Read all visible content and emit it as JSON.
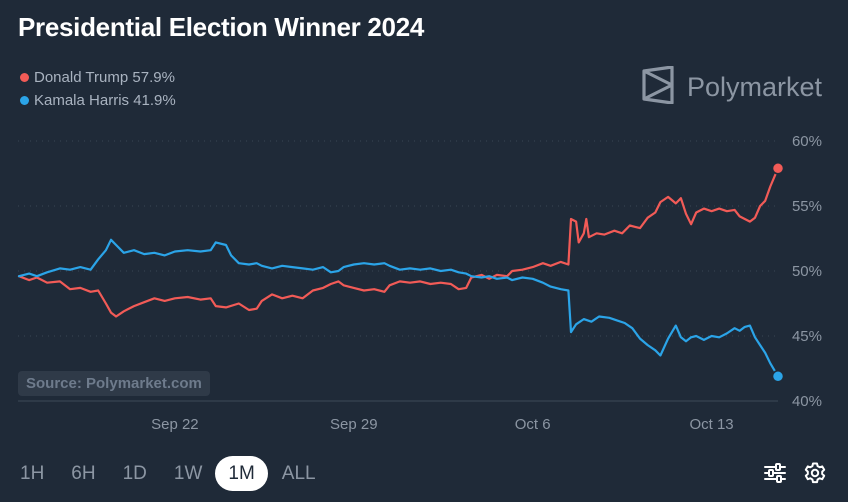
{
  "title": "Presidential Election Winner 2024",
  "brand": {
    "name": "Polymarket",
    "icon": "polymarket-logo-icon"
  },
  "legend": [
    {
      "label": "Donald Trump 57.9%",
      "color": "#f25b57"
    },
    {
      "label": "Kamala Harris 41.9%",
      "color": "#2ba4e8"
    }
  ],
  "source_label": "Source: Polymarket.com",
  "time_ranges": [
    {
      "label": "1H",
      "active": false
    },
    {
      "label": "6H",
      "active": false
    },
    {
      "label": "1D",
      "active": false
    },
    {
      "label": "1W",
      "active": false
    },
    {
      "label": "1M",
      "active": true
    },
    {
      "label": "ALL",
      "active": false
    }
  ],
  "tools": {
    "settings_icon": "sliders-icon",
    "gear_icon": "gear-icon"
  },
  "chart_data": {
    "type": "line",
    "title": "Presidential Election Winner 2024",
    "x_ticks": [
      {
        "day": 22,
        "label": "Sep 22"
      },
      {
        "day": 29,
        "label": "Sep 29"
      },
      {
        "day": 36,
        "label": "Oct 6"
      },
      {
        "day": 43,
        "label": "Oct 13"
      }
    ],
    "y_ticks": [
      {
        "value": 60,
        "label": "60%"
      },
      {
        "value": 55,
        "label": "55%"
      },
      {
        "value": 50,
        "label": "50%"
      },
      {
        "value": 45,
        "label": "45%"
      },
      {
        "value": 40,
        "label": "40%"
      }
    ],
    "xlim": [
      15.9,
      45.6
    ],
    "ylim": [
      40,
      60
    ],
    "grid": true,
    "series": [
      {
        "name": "Donald Trump",
        "color": "#f25b57",
        "end_marker": true,
        "points": [
          [
            15.9,
            49.6
          ],
          [
            16.3,
            49.3
          ],
          [
            16.6,
            49.5
          ],
          [
            17.0,
            49.1
          ],
          [
            17.5,
            49.2
          ],
          [
            17.9,
            48.6
          ],
          [
            18.3,
            48.7
          ],
          [
            18.7,
            48.4
          ],
          [
            19.0,
            48.5
          ],
          [
            19.3,
            47.5
          ],
          [
            19.5,
            46.8
          ],
          [
            19.7,
            46.5
          ],
          [
            20.0,
            46.9
          ],
          [
            20.4,
            47.3
          ],
          [
            20.8,
            47.6
          ],
          [
            21.2,
            47.9
          ],
          [
            21.6,
            47.7
          ],
          [
            22.0,
            47.9
          ],
          [
            22.5,
            48.0
          ],
          [
            23.0,
            47.8
          ],
          [
            23.4,
            47.9
          ],
          [
            23.6,
            47.3
          ],
          [
            24.0,
            47.2
          ],
          [
            24.5,
            47.5
          ],
          [
            24.9,
            47.0
          ],
          [
            25.2,
            47.1
          ],
          [
            25.4,
            47.7
          ],
          [
            25.8,
            48.2
          ],
          [
            26.2,
            47.9
          ],
          [
            26.6,
            48.1
          ],
          [
            27.0,
            47.9
          ],
          [
            27.4,
            48.5
          ],
          [
            27.8,
            48.7
          ],
          [
            28.1,
            49.0
          ],
          [
            28.4,
            49.2
          ],
          [
            28.6,
            48.9
          ],
          [
            29.0,
            48.7
          ],
          [
            29.4,
            48.5
          ],
          [
            29.8,
            48.6
          ],
          [
            30.2,
            48.4
          ],
          [
            30.4,
            48.9
          ],
          [
            30.8,
            49.2
          ],
          [
            31.2,
            49.1
          ],
          [
            31.6,
            49.2
          ],
          [
            32.0,
            49.0
          ],
          [
            32.4,
            49.1
          ],
          [
            32.8,
            49.0
          ],
          [
            33.1,
            48.6
          ],
          [
            33.4,
            48.7
          ],
          [
            33.6,
            49.5
          ],
          [
            34.0,
            49.7
          ],
          [
            34.3,
            49.4
          ],
          [
            34.6,
            49.7
          ],
          [
            35.0,
            49.6
          ],
          [
            35.2,
            50.0
          ],
          [
            35.6,
            50.1
          ],
          [
            36.0,
            50.3
          ],
          [
            36.4,
            50.6
          ],
          [
            36.7,
            50.4
          ],
          [
            37.1,
            50.7
          ],
          [
            37.4,
            50.5
          ],
          [
            37.5,
            54.0
          ],
          [
            37.7,
            53.8
          ],
          [
            37.8,
            52.2
          ],
          [
            38.0,
            52.9
          ],
          [
            38.1,
            54.0
          ],
          [
            38.2,
            52.6
          ],
          [
            38.5,
            52.9
          ],
          [
            38.8,
            52.8
          ],
          [
            39.2,
            53.1
          ],
          [
            39.5,
            52.9
          ],
          [
            39.8,
            53.5
          ],
          [
            40.2,
            53.3
          ],
          [
            40.5,
            54.1
          ],
          [
            40.8,
            54.5
          ],
          [
            41.0,
            55.3
          ],
          [
            41.3,
            55.7
          ],
          [
            41.6,
            55.2
          ],
          [
            41.8,
            55.6
          ],
          [
            42.0,
            54.4
          ],
          [
            42.2,
            53.6
          ],
          [
            42.4,
            54.5
          ],
          [
            42.7,
            54.8
          ],
          [
            43.0,
            54.6
          ],
          [
            43.3,
            54.8
          ],
          [
            43.6,
            54.6
          ],
          [
            43.9,
            54.7
          ],
          [
            44.1,
            54.2
          ],
          [
            44.3,
            54.0
          ],
          [
            44.5,
            53.8
          ],
          [
            44.7,
            54.1
          ],
          [
            44.9,
            55.0
          ],
          [
            45.1,
            55.4
          ],
          [
            45.3,
            56.5
          ],
          [
            45.6,
            57.9
          ]
        ]
      },
      {
        "name": "Kamala Harris",
        "color": "#2ba4e8",
        "end_marker": true,
        "points": [
          [
            15.9,
            49.6
          ],
          [
            16.3,
            49.8
          ],
          [
            16.6,
            49.6
          ],
          [
            17.0,
            49.9
          ],
          [
            17.5,
            50.2
          ],
          [
            17.9,
            50.1
          ],
          [
            18.3,
            50.3
          ],
          [
            18.7,
            50.1
          ],
          [
            19.0,
            50.9
          ],
          [
            19.3,
            51.6
          ],
          [
            19.5,
            52.4
          ],
          [
            19.7,
            52.0
          ],
          [
            20.0,
            51.4
          ],
          [
            20.4,
            51.6
          ],
          [
            20.8,
            51.3
          ],
          [
            21.2,
            51.4
          ],
          [
            21.6,
            51.2
          ],
          [
            22.0,
            51.5
          ],
          [
            22.5,
            51.6
          ],
          [
            23.0,
            51.5
          ],
          [
            23.4,
            51.6
          ],
          [
            23.6,
            52.2
          ],
          [
            24.0,
            52.0
          ],
          [
            24.2,
            51.2
          ],
          [
            24.5,
            50.6
          ],
          [
            24.9,
            50.5
          ],
          [
            25.2,
            50.6
          ],
          [
            25.4,
            50.4
          ],
          [
            25.8,
            50.2
          ],
          [
            26.2,
            50.4
          ],
          [
            26.6,
            50.3
          ],
          [
            27.0,
            50.2
          ],
          [
            27.4,
            50.1
          ],
          [
            27.8,
            50.3
          ],
          [
            28.1,
            49.9
          ],
          [
            28.4,
            50.0
          ],
          [
            28.6,
            50.3
          ],
          [
            29.0,
            50.5
          ],
          [
            29.4,
            50.6
          ],
          [
            29.8,
            50.5
          ],
          [
            30.2,
            50.6
          ],
          [
            30.4,
            50.4
          ],
          [
            30.8,
            50.1
          ],
          [
            31.2,
            50.2
          ],
          [
            31.6,
            50.1
          ],
          [
            32.0,
            50.2
          ],
          [
            32.4,
            50.0
          ],
          [
            32.8,
            50.1
          ],
          [
            33.1,
            49.9
          ],
          [
            33.4,
            49.8
          ],
          [
            33.6,
            49.6
          ],
          [
            34.0,
            49.5
          ],
          [
            34.3,
            49.6
          ],
          [
            34.6,
            49.4
          ],
          [
            35.0,
            49.5
          ],
          [
            35.2,
            49.3
          ],
          [
            35.6,
            49.5
          ],
          [
            36.0,
            49.4
          ],
          [
            36.4,
            49.1
          ],
          [
            36.7,
            48.8
          ],
          [
            37.1,
            48.6
          ],
          [
            37.4,
            48.5
          ],
          [
            37.5,
            45.3
          ],
          [
            37.7,
            45.9
          ],
          [
            38.0,
            46.3
          ],
          [
            38.3,
            46.1
          ],
          [
            38.6,
            46.5
          ],
          [
            39.0,
            46.4
          ],
          [
            39.3,
            46.2
          ],
          [
            39.6,
            46.0
          ],
          [
            39.9,
            45.6
          ],
          [
            40.2,
            44.8
          ],
          [
            40.5,
            44.3
          ],
          [
            40.8,
            43.9
          ],
          [
            41.0,
            43.5
          ],
          [
            41.3,
            44.8
          ],
          [
            41.6,
            45.8
          ],
          [
            41.8,
            44.9
          ],
          [
            42.0,
            44.6
          ],
          [
            42.2,
            44.9
          ],
          [
            42.4,
            45.0
          ],
          [
            42.7,
            44.7
          ],
          [
            43.0,
            45.0
          ],
          [
            43.3,
            44.9
          ],
          [
            43.6,
            45.2
          ],
          [
            43.9,
            45.6
          ],
          [
            44.1,
            45.4
          ],
          [
            44.3,
            45.7
          ],
          [
            44.5,
            45.8
          ],
          [
            44.7,
            44.9
          ],
          [
            44.9,
            44.3
          ],
          [
            45.1,
            43.7
          ],
          [
            45.3,
            42.9
          ],
          [
            45.6,
            41.9
          ]
        ]
      }
    ]
  }
}
